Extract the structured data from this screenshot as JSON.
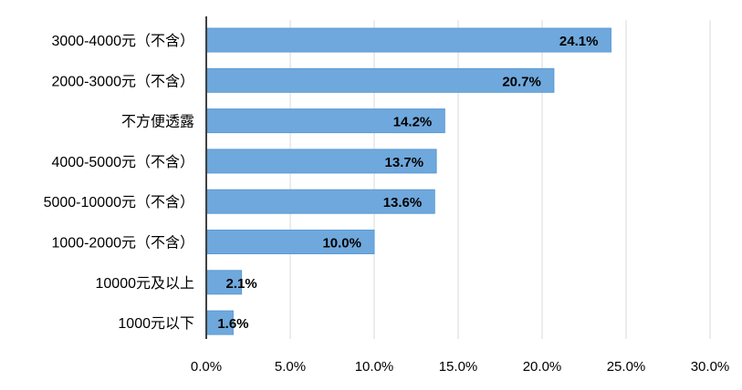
{
  "chart_data": {
    "type": "bar",
    "orientation": "horizontal",
    "categories": [
      "3000-4000元（不含）",
      "2000-3000元（不含）",
      "不方便透露",
      "4000-5000元（不含）",
      "5000-10000元（不含）",
      "1000-2000元（不含）",
      "10000元及以上",
      "1000元以下"
    ],
    "values": [
      24.1,
      20.7,
      14.2,
      13.7,
      13.6,
      10.0,
      2.1,
      1.6
    ],
    "data_labels": [
      "24.1%",
      "20.7%",
      "14.2%",
      "13.7%",
      "13.6%",
      "10.0%",
      "2.1%",
      "1.6%"
    ],
    "x_ticks": [
      "0.0%",
      "5.0%",
      "10.0%",
      "15.0%",
      "20.0%",
      "25.0%",
      "30.0%"
    ],
    "xlim": [
      0,
      30
    ],
    "x_tick_step": 5,
    "grid": "vertical",
    "legend": "none",
    "title": "",
    "xlabel": "",
    "ylabel": "",
    "colors": {
      "bar_fill": "#6fa8dc",
      "bar_stroke": "#5b9bd5",
      "grid": "#d9d9d9",
      "axis": "#404040",
      "text": "#000000"
    }
  }
}
